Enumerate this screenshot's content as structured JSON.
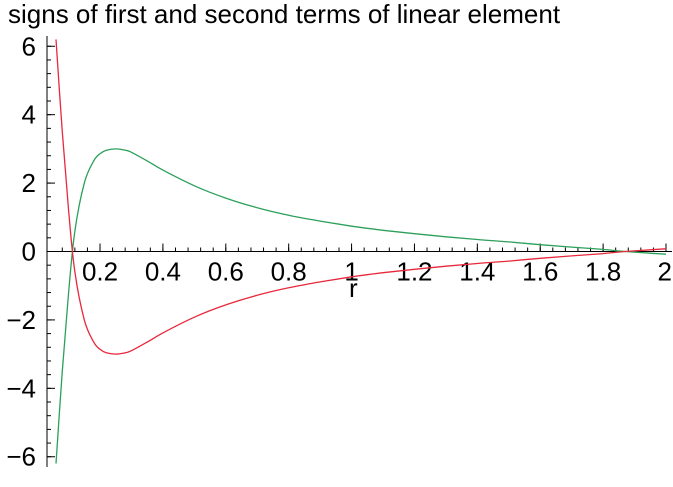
{
  "chart_data": {
    "type": "line",
    "title": "signs of first and second terms of linear element",
    "xlabel": "r",
    "ylabel": "",
    "xlim": [
      0.06,
      2.0
    ],
    "ylim": [
      -6.3,
      6.3
    ],
    "grid": false,
    "legend": "none",
    "x_ticks": [
      {
        "value": 0.2,
        "label": "0.2"
      },
      {
        "value": 0.4,
        "label": "0.4"
      },
      {
        "value": 0.6,
        "label": "0.6"
      },
      {
        "value": 0.8,
        "label": "0.8"
      },
      {
        "value": 1.0,
        "label": "1"
      },
      {
        "value": 1.2,
        "label": "1.2"
      },
      {
        "value": 1.4,
        "label": "1.4"
      },
      {
        "value": 1.6,
        "label": "1.6"
      },
      {
        "value": 1.8,
        "label": "1.8"
      },
      {
        "value": 2.0,
        "label": "2"
      }
    ],
    "y_ticks": [
      {
        "value": 6,
        "label": "6"
      },
      {
        "value": 4,
        "label": "4"
      },
      {
        "value": 2,
        "label": "2"
      },
      {
        "value": 0,
        "label": "0"
      },
      {
        "value": -2,
        "label": "−2"
      },
      {
        "value": -4,
        "label": "−4"
      },
      {
        "value": -6,
        "label": "−6"
      }
    ],
    "series": [
      {
        "color": "#2ca05a",
        "x": [
          0.06,
          0.08,
          0.1,
          0.12,
          0.15,
          0.18,
          0.2,
          0.22,
          0.25,
          0.28,
          0.3,
          0.35,
          0.4,
          0.5,
          0.6,
          0.7,
          0.8,
          0.9,
          1.0,
          1.1,
          1.2,
          1.3,
          1.4,
          1.5,
          1.6,
          1.7,
          1.8,
          1.87,
          1.95,
          2.0
        ],
        "values": [
          -6.2,
          -3.5,
          -1.2,
          0.6,
          2.0,
          2.65,
          2.86,
          2.96,
          3.0,
          2.96,
          2.9,
          2.65,
          2.38,
          1.92,
          1.56,
          1.28,
          1.06,
          0.89,
          0.74,
          0.62,
          0.52,
          0.43,
          0.35,
          0.28,
          0.2,
          0.13,
          0.06,
          0.0,
          -0.05,
          -0.08
        ]
      },
      {
        "color": "#e8283c",
        "x": [
          0.06,
          0.08,
          0.1,
          0.12,
          0.15,
          0.18,
          0.2,
          0.22,
          0.25,
          0.28,
          0.3,
          0.35,
          0.4,
          0.5,
          0.6,
          0.7,
          0.8,
          0.9,
          1.0,
          1.1,
          1.2,
          1.3,
          1.4,
          1.5,
          1.6,
          1.7,
          1.8,
          1.87,
          1.95,
          2.0
        ],
        "values": [
          6.2,
          3.5,
          1.2,
          -0.6,
          -2.0,
          -2.65,
          -2.86,
          -2.96,
          -3.0,
          -2.96,
          -2.9,
          -2.65,
          -2.38,
          -1.92,
          -1.56,
          -1.28,
          -1.06,
          -0.89,
          -0.74,
          -0.62,
          -0.52,
          -0.43,
          -0.35,
          -0.28,
          -0.2,
          -0.13,
          -0.06,
          0.0,
          0.05,
          0.08
        ]
      }
    ]
  }
}
